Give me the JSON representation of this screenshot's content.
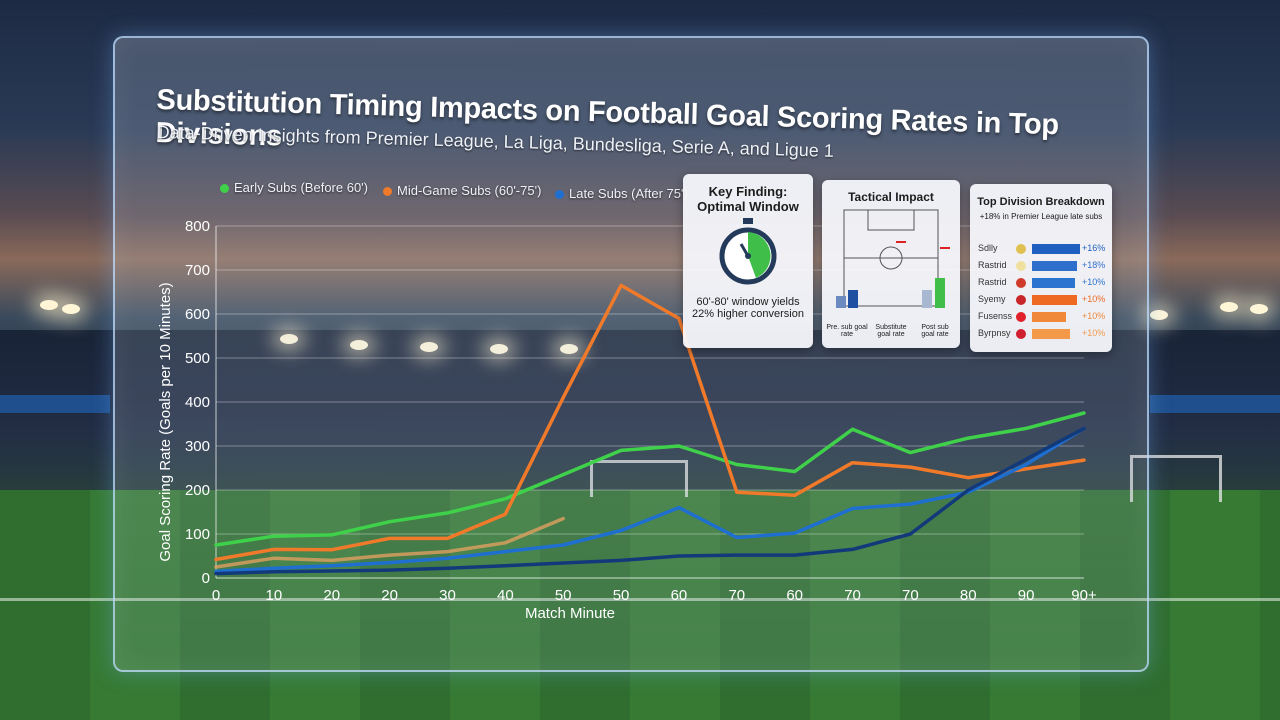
{
  "title": "Substitution Timing Impacts on Football Goal Scoring Rates in Top Divisions",
  "subtitle": "Data-Driven Insights from Premier League, La Liga, Bundesliga, Serie A, and Ligue 1",
  "colors": {
    "early": "#3fd14a",
    "mid": "#f07a2a",
    "late": "#1f6fd0",
    "faded": "#e0a060",
    "dark": "#123a7a"
  },
  "chart_data": {
    "type": "line",
    "xlabel": "Match Minute",
    "ylabel": "Goal Scoring Rate (Goals per 10 Minutes)",
    "ylim": [
      0,
      800
    ],
    "yticks": [
      "0",
      "100",
      "200",
      "300",
      "400",
      "500",
      "600",
      "700",
      "800"
    ],
    "categories": [
      "0",
      "10",
      "20",
      "20",
      "30",
      "40",
      "50",
      "50",
      "60",
      "70",
      "60",
      "70",
      "70",
      "80",
      "90",
      "90+"
    ],
    "grid": true,
    "legend_position": "top-left",
    "series": [
      {
        "name": "Early Subs (Before 60')",
        "color_key": "early",
        "values": [
          75,
          95,
          98,
          128,
          148,
          180,
          235,
          290,
          300,
          258,
          242,
          338,
          285,
          318,
          340,
          375
        ]
      },
      {
        "name": "Mid-Game Subs (60'-75')",
        "color_key": "mid",
        "values": [
          42,
          65,
          64,
          90,
          90,
          145,
          410,
          665,
          590,
          195,
          188,
          262,
          252,
          228,
          248,
          268
        ]
      },
      {
        "name": "Late Subs (After 75')",
        "color_key": "late",
        "values": [
          15,
          22,
          28,
          35,
          45,
          60,
          75,
          108,
          160,
          92,
          102,
          158,
          168,
          195,
          258,
          340
        ]
      },
      {
        "name": "",
        "color_key": "faded",
        "values": [
          25,
          45,
          40,
          52,
          60,
          80,
          135,
          null,
          null,
          null,
          null,
          null,
          null,
          null,
          null,
          null
        ]
      },
      {
        "name": "",
        "color_key": "dark",
        "values": [
          10,
          14,
          16,
          18,
          22,
          28,
          34,
          40,
          50,
          52,
          52,
          65,
          100,
          200,
          270,
          340
        ]
      }
    ]
  },
  "key_finding": {
    "title_line1": "Key Finding:",
    "title_line2": "Optimal Window",
    "line1": "60'-80' window yields",
    "line2": "22% higher conversion",
    "icon": "stopwatch-icon"
  },
  "tactical": {
    "title": "Tactical Impact",
    "labels": [
      "Pre. sub goal rate",
      "Substitute goal rate",
      "Post sub goal rate"
    ]
  },
  "breakdown": {
    "title": "Top Division Breakdown",
    "note": "+18% in Premier League late subs",
    "rows": [
      {
        "team": "Sdlly",
        "value": "+16%",
        "color": "#1e5fc0",
        "crest": "#e0c050",
        "fill": 0.78
      },
      {
        "team": "Rastrid",
        "value": "+18%",
        "color": "#2f6fcc",
        "crest": "#f0e0a0",
        "fill": 0.72
      },
      {
        "team": "Rastrid",
        "value": "+10%",
        "color": "#2b74cf",
        "crest": "#d03a2a",
        "fill": 0.7
      },
      {
        "team": "Syemy",
        "value": "+10%",
        "color": "#ee6a22",
        "crest": "#c8262a",
        "fill": 0.72
      },
      {
        "team": "Fusenss",
        "value": "+10%",
        "color": "#f08a3a",
        "crest": "#e0202a",
        "fill": 0.55
      },
      {
        "team": "Byrpnsy",
        "value": "+10%",
        "color": "#f29a4a",
        "crest": "#d02030",
        "fill": 0.62
      }
    ]
  }
}
